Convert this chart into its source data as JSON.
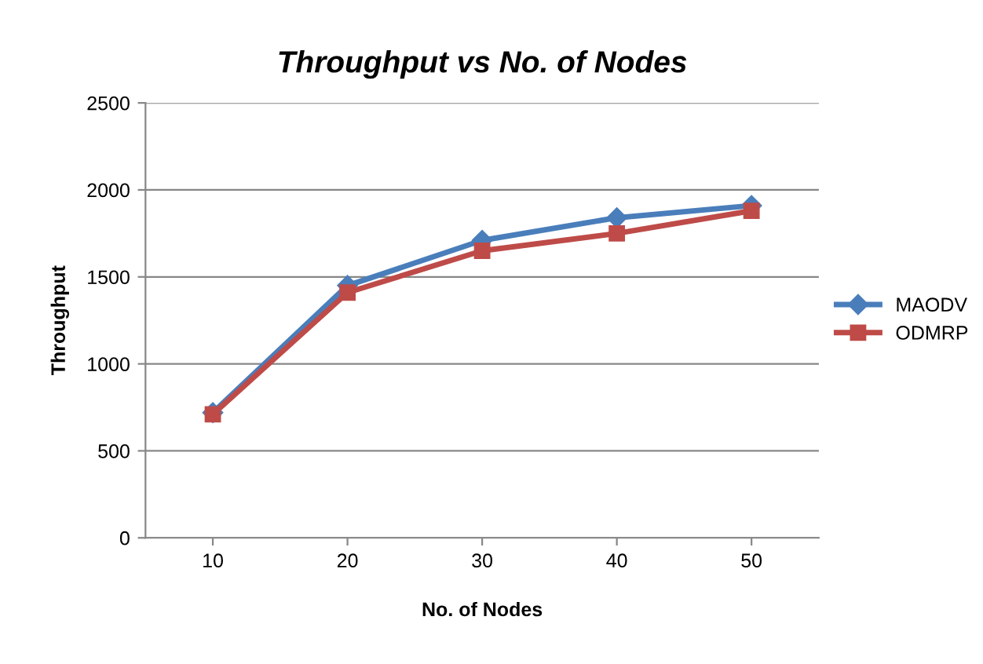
{
  "chart_data": {
    "type": "line",
    "title": "Throughput vs No. of Nodes",
    "xlabel": "No. of Nodes",
    "ylabel": "Throughput",
    "categories": [
      "10",
      "20",
      "30",
      "40",
      "50"
    ],
    "series": [
      {
        "name": "MAODV",
        "color": "#4a7ebb",
        "marker": "diamond",
        "values": [
          720,
          1450,
          1710,
          1840,
          1910
        ]
      },
      {
        "name": "ODMRP",
        "color": "#be4b48",
        "marker": "square",
        "values": [
          710,
          1410,
          1650,
          1750,
          1880
        ]
      }
    ],
    "ylim": [
      0,
      2500
    ],
    "yticks": [
      0,
      500,
      1000,
      1500,
      2000,
      2500
    ],
    "grid": "y",
    "legend": "right",
    "line_style": "solid"
  }
}
